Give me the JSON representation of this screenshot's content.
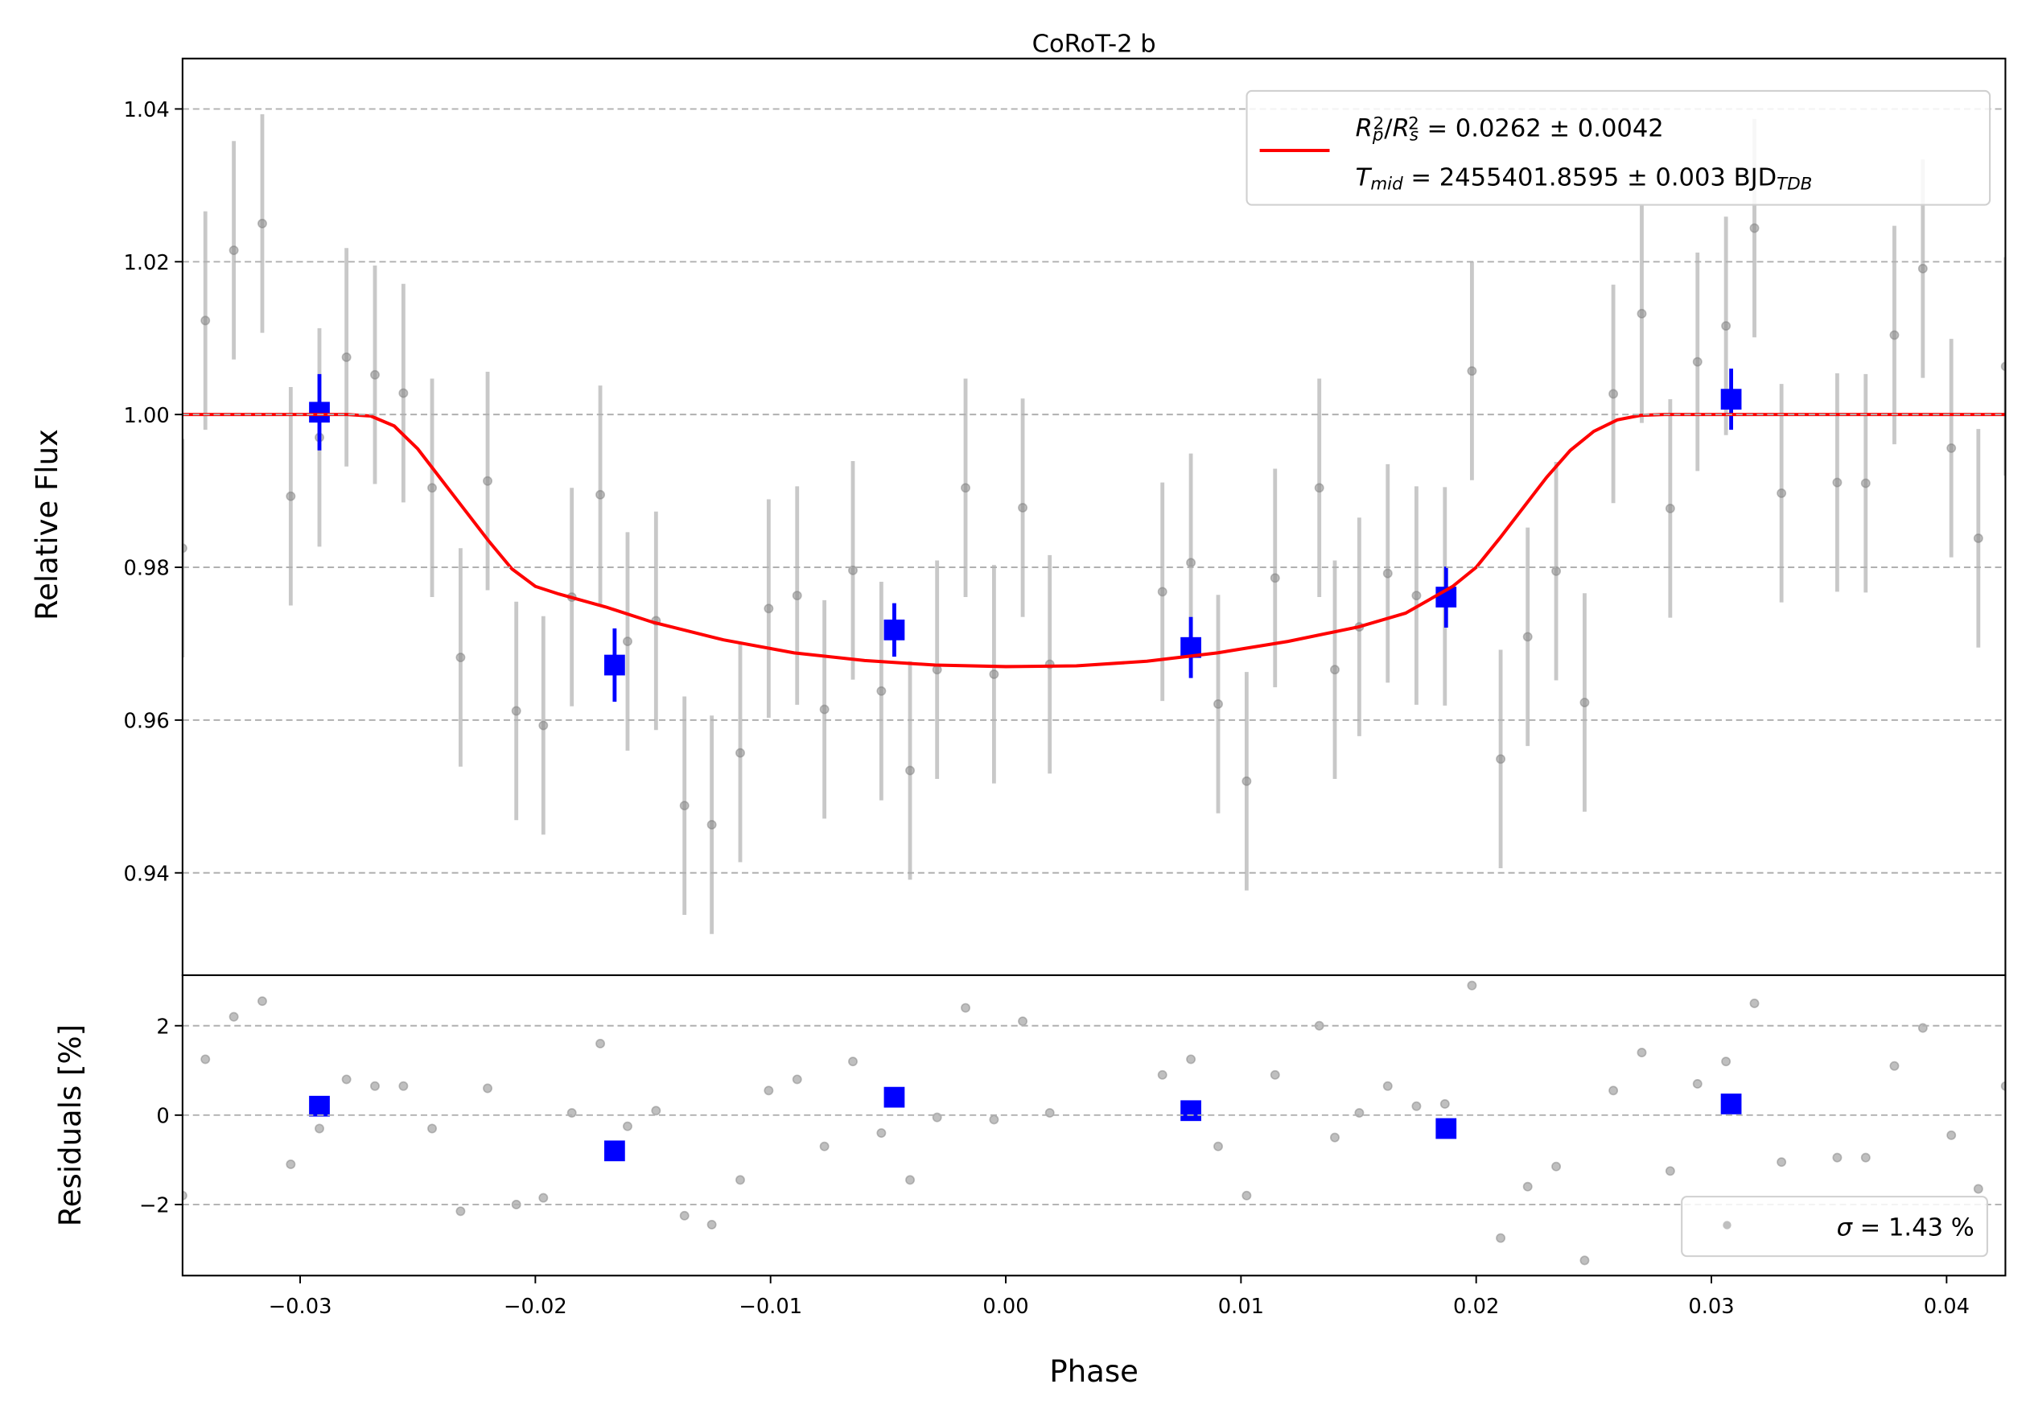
{
  "chart_data": [
    {
      "type": "scatter",
      "title": "CoRoT-2 b",
      "ylabel": "Relative Flux",
      "xlim": [
        -0.035,
        0.0425
      ],
      "ylim": [
        0.9266,
        1.0466
      ],
      "yticks": [
        0.94,
        0.96,
        0.98,
        {
          "value": 1,
          "label": "1.00"
        },
        1.02,
        1.04
      ],
      "grid": true,
      "legend": "upper right",
      "series": [
        {
          "color": "#808080",
          "errorcolor": "#c8c8c8",
          "x": [
            -0.035,
            -0.03403,
            -0.03282,
            -0.03161,
            -0.0304,
            -0.02918,
            -0.02803,
            -0.02682,
            -0.02561,
            -0.02439,
            -0.02318,
            -0.02203,
            -0.02081,
            -0.01966,
            -0.01845,
            -0.01724,
            -0.01608,
            -0.01487,
            -0.01366,
            -0.0125,
            -0.01129,
            -0.01008,
            -0.00887,
            -0.00771,
            -0.0065,
            -0.00529,
            -0.00407,
            -0.00292,
            -0.00171,
            -0.0005,
            0.00072,
            0.00187,
            0.00666,
            0.00787,
            0.00903,
            0.01024,
            0.01145,
            0.01333,
            0.01399,
            0.01503,
            0.01624,
            0.01746,
            0.01867,
            0.01982,
            0.02104,
            0.02219,
            0.0234,
            0.02461,
            0.02583,
            0.02704,
            0.02825,
            0.02941,
            0.03062,
            0.03183,
            0.03298,
            0.03535,
            0.03656,
            0.03778,
            0.03899,
            0.0402,
            0.04135,
            0.04251
          ],
          "values": [
            0.9825,
            1.0123,
            1.0215,
            1.025,
            0.9893,
            0.997,
            1.0075,
            1.0052,
            1.0028,
            0.9904,
            0.9682,
            0.9913,
            0.9612,
            0.9593,
            0.9761,
            0.9895,
            0.9703,
            0.973,
            0.9488,
            0.9463,
            0.9557,
            0.9746,
            0.9763,
            0.9614,
            0.9796,
            0.9638,
            0.9534,
            0.9666,
            0.9904,
            0.966,
            0.9878,
            0.9673,
            0.9768,
            0.9806,
            0.9621,
            0.952,
            0.9786,
            0.9904,
            0.9666,
            0.9722,
            0.9792,
            0.9763,
            0.9762,
            1.0057,
            0.9549,
            0.9709,
            0.9795,
            0.9623,
            1.0027,
            1.0132,
            0.9877,
            1.0069,
            1.0116,
            1.0244,
            0.9897,
            0.9911,
            0.991,
            1.0104,
            1.0191,
            0.9956,
            0.9838,
            1.0063
          ],
          "errors": [
            0.0143,
            0.0143,
            0.0143,
            0.0143,
            0.0143,
            0.0143,
            0.0143,
            0.0143,
            0.0143,
            0.0143,
            0.0143,
            0.0143,
            0.0143,
            0.0143,
            0.0143,
            0.0143,
            0.0143,
            0.0143,
            0.0143,
            0.0143,
            0.0143,
            0.0143,
            0.0143,
            0.0143,
            0.0143,
            0.0143,
            0.0143,
            0.0143,
            0.0143,
            0.0143,
            0.0143,
            0.0143,
            0.0143,
            0.0143,
            0.0143,
            0.0143,
            0.0143,
            0.0143,
            0.0143,
            0.0143,
            0.0143,
            0.0143,
            0.0143,
            0.0143,
            0.0143,
            0.0143,
            0.0143,
            0.0143,
            0.0143,
            0.0143,
            0.0143,
            0.0143,
            0.0143,
            0.0143,
            0.0143,
            0.0143,
            0.0143,
            0.0143,
            0.0143,
            0.0143,
            0.0143,
            0.0143
          ]
        },
        {
          "color": "#0000ff",
          "marker": "square",
          "x": [
            -0.02918,
            -0.01663,
            -0.00474,
            0.00787,
            0.01872,
            0.03084
          ],
          "values": [
            1.0003,
            0.9672,
            0.9718,
            0.9695,
            0.9761,
            1.002
          ],
          "errors": [
            0.005,
            0.0048,
            0.0035,
            0.004,
            0.004,
            0.004
          ]
        },
        {
          "color": "#ff0000",
          "line": true,
          "legend": [
            [
              {
                "text": "R",
                "italic": true
              },
              {
                "text": "p",
                "italic": true,
                "shift": "sub"
              },
              {
                "text": "2",
                "shift": "sup"
              },
              {
                "text": "/"
              },
              {
                "text": "R",
                "italic": true
              },
              {
                "text": "s",
                "italic": true,
                "shift": "sub"
              },
              {
                "text": "2",
                "shift": "sup"
              },
              {
                "text": " = 0.0262 ± 0.0042"
              }
            ],
            [
              {
                "text": "T",
                "italic": true
              },
              {
                "text": "mid",
                "italic": true,
                "shift": "sub"
              },
              {
                "text": " = 2455401.8595 ± 0.003 BJD"
              },
              {
                "text": "TDB",
                "italic": true,
                "shift": "sub"
              }
            ]
          ],
          "x": [
            -0.035,
            -0.028,
            -0.027,
            -0.026,
            -0.025,
            -0.024,
            -0.023,
            -0.022,
            -0.021,
            -0.02,
            -0.019,
            -0.017,
            -0.015,
            -0.012,
            -0.009,
            -0.006,
            -0.003,
            0,
            0.003,
            0.006,
            0.009,
            0.012,
            0.015,
            0.017,
            0.019,
            0.02,
            0.021,
            0.022,
            0.023,
            0.024,
            0.025,
            0.026,
            0.027,
            0.028,
            0.0425
          ],
          "values": [
            1,
            1,
            0.9998,
            0.9985,
            0.9955,
            0.9915,
            0.9875,
            0.9835,
            0.9798,
            0.9775,
            0.9765,
            0.9748,
            0.9728,
            0.9705,
            0.9688,
            0.9678,
            0.9672,
            0.967,
            0.9671,
            0.9677,
            0.9688,
            0.9703,
            0.9722,
            0.974,
            0.9775,
            0.98,
            0.9838,
            0.9878,
            0.9918,
            0.9953,
            0.9978,
            0.9993,
            0.9999,
            1,
            1
          ]
        }
      ]
    },
    {
      "type": "scatter",
      "ylabel": "Residuals [%]",
      "xlabel": "Phase",
      "xlim": [
        -0.035,
        0.0425
      ],
      "ylim": [
        -3.59,
        3.13
      ],
      "xticks": [
        {
          "value": -0.03,
          "label": "−0.03"
        },
        {
          "value": -0.02,
          "label": "−0.02"
        },
        {
          "value": -0.01,
          "label": "−0.01"
        },
        {
          "value": 0,
          "label": "0.00"
        },
        {
          "value": 0.01,
          "label": "0.01"
        },
        {
          "value": 0.02,
          "label": "0.02"
        },
        {
          "value": 0.03,
          "label": "0.03"
        },
        {
          "value": 0.04,
          "label": "0.04"
        }
      ],
      "yticks": [
        {
          "value": -2,
          "label": "−2"
        },
        0,
        2
      ],
      "grid": true,
      "legend": "lower right",
      "series": [
        {
          "color": "#808080",
          "legend": [
            [
              {
                "text": "σ",
                "italic": true
              },
              {
                "text": " = 1.43 %"
              }
            ]
          ],
          "x": [
            -0.035,
            -0.03403,
            -0.03282,
            -0.03161,
            -0.0304,
            -0.02918,
            -0.02803,
            -0.02682,
            -0.02561,
            -0.02439,
            -0.02318,
            -0.02203,
            -0.02081,
            -0.01966,
            -0.01845,
            -0.01724,
            -0.01608,
            -0.01487,
            -0.01366,
            -0.0125,
            -0.01129,
            -0.01008,
            -0.00887,
            -0.00771,
            -0.0065,
            -0.00529,
            -0.00407,
            -0.00292,
            -0.00171,
            -0.0005,
            0.00072,
            0.00187,
            0.00666,
            0.00787,
            0.00903,
            0.01024,
            0.01145,
            0.01333,
            0.01399,
            0.01503,
            0.01624,
            0.01746,
            0.01867,
            0.01982,
            0.02104,
            0.02219,
            0.0234,
            0.02461,
            0.02583,
            0.02704,
            0.02825,
            0.02941,
            0.03062,
            0.03183,
            0.03298,
            0.03535,
            0.03656,
            0.03778,
            0.03899,
            0.0402,
            0.04135,
            0.04251
          ],
          "values": [
            -1.8,
            1.25,
            2.2,
            2.55,
            -1.1,
            -0.3,
            0.8,
            0.65,
            0.65,
            -0.3,
            -2.15,
            0.6,
            -2.0,
            -1.85,
            0.05,
            1.6,
            -0.25,
            0.1,
            -2.25,
            -2.45,
            -1.45,
            0.55,
            0.8,
            -0.7,
            1.2,
            -0.4,
            -1.45,
            -0.05,
            2.4,
            -0.1,
            2.1,
            0.05,
            0.9,
            1.25,
            -0.7,
            -1.8,
            0.9,
            2.0,
            -0.5,
            0.05,
            0.65,
            0.2,
            0.25,
            2.9,
            -2.75,
            -1.6,
            -1.15,
            -3.25,
            0.55,
            1.4,
            -1.25,
            0.7,
            1.2,
            2.5,
            -1.05,
            -0.95,
            -0.95,
            1.1,
            1.95,
            -0.45,
            -1.65,
            0.65
          ]
        },
        {
          "color": "#0000ff",
          "marker": "square",
          "x": [
            -0.02918,
            -0.01663,
            -0.00474,
            0.00787,
            0.01872,
            0.03084
          ],
          "values": [
            0.2,
            -0.8,
            0.4,
            0.1,
            -0.3,
            0.25
          ]
        }
      ]
    }
  ]
}
